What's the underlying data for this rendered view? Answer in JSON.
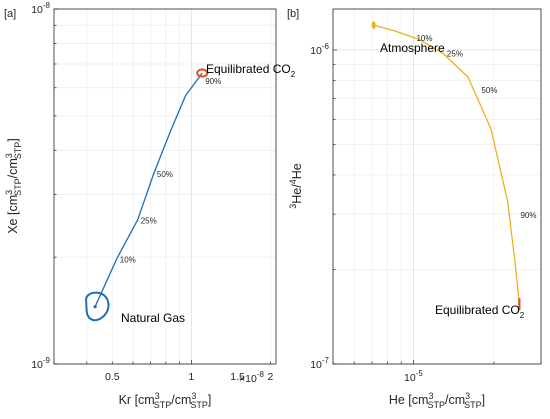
{
  "chart_data": [
    {
      "panel_label": "[a]",
      "type": "line",
      "xscale": "log",
      "yscale": "log",
      "xlim": [
        3e-09,
        2.1e-08
      ],
      "ylim": [
        1e-09,
        1e-08
      ],
      "xlabel_parts": [
        "Kr [cm",
        "3",
        "STP",
        "/cm",
        "3",
        "STP",
        "]"
      ],
      "ylabel_parts": [
        "Xe [cm",
        "3",
        "STP",
        "/cm",
        "3",
        "STP",
        "]"
      ],
      "x_ticks": [
        {
          "value": 5e-09,
          "label": "0.5"
        },
        {
          "value": 1e-08,
          "label": "1"
        },
        {
          "value": 1.5e-08,
          "label": "1.5"
        },
        {
          "value": 2e-08,
          "label": "2"
        }
      ],
      "x_multiplier": "×10",
      "x_multiplier_exp": "-8",
      "y_ticks": [
        {
          "value": 1e-09,
          "base": "10",
          "exp": "-9"
        },
        {
          "value": 1e-08,
          "base": "10",
          "exp": "-8"
        }
      ],
      "grid": true,
      "line_color": "#1f6eb3",
      "marker_color": "#d95319",
      "x": [
        4.3e-09,
        5.2e-09,
        6.25e-09,
        7.2e-09,
        8.3e-09,
        9.5e-09,
        1.1e-08
      ],
      "y": [
        1.45e-09,
        1.98e-09,
        2.55e-09,
        3.45e-09,
        4.5e-09,
        5.7e-09,
        6.6e-09
      ],
      "labeled_points": [
        {
          "label": "10%",
          "x": 5.2e-09,
          "y": 1.98e-09
        },
        {
          "label": "25%",
          "x": 6.25e-09,
          "y": 2.55e-09
        },
        {
          "label": "50%",
          "x": 7.2e-09,
          "y": 3.45e-09
        },
        {
          "label": "90%",
          "x": 1.1e-08,
          "y": 6.3e-09
        }
      ],
      "endmembers": [
        {
          "name": "Natural Gas",
          "x": 4.3e-09,
          "y": 1.45e-09,
          "color": "#1f6eb3"
        },
        {
          "name_parts": [
            "Equilibrated CO",
            "2"
          ],
          "x": 1.1e-08,
          "y": 6.6e-09,
          "color": "#d95319"
        }
      ]
    },
    {
      "panel_label": "[b]",
      "type": "line",
      "xscale": "log",
      "yscale": "log",
      "xlim": [
        5e-06,
        3e-05
      ],
      "ylim": [
        1e-07,
        1.35e-06
      ],
      "xlabel_parts": [
        "He [cm",
        "3",
        "STP",
        "/cm",
        "3",
        "STP",
        "]"
      ],
      "ylabel_parts": [
        "3",
        "He/",
        "4",
        "He"
      ],
      "x_ticks": [
        {
          "value": 1e-05,
          "base": "10",
          "exp": "-5"
        }
      ],
      "y_ticks": [
        {
          "value": 1e-07,
          "base": "10",
          "exp": "-7"
        },
        {
          "value": 1e-06,
          "base": "10",
          "exp": "-6"
        }
      ],
      "grid": true,
      "line_color": "#edb120",
      "marker_color": "#d95319",
      "x": [
        7.1e-06,
        8.5e-06,
        1.05e-05,
        1.3e-05,
        1.6e-05,
        1.95e-05,
        2.25e-05,
        2.4e-05,
        2.49e-05
      ],
      "y": [
        1.2e-06,
        1.15e-06,
        1.08e-06,
        9.7e-07,
        8.2e-07,
        5.6e-07,
        3.3e-07,
        2.1e-07,
        1.55e-07
      ],
      "labeled_points": [
        {
          "label": "10%",
          "x": 1e-05,
          "y": 1.1e-06
        },
        {
          "label": "25%",
          "x": 1.3e-05,
          "y": 9.8e-07
        },
        {
          "label": "50%",
          "x": 1.75e-05,
          "y": 7.5e-07
        },
        {
          "label": "90%",
          "x": 2.45e-05,
          "y": 3e-07
        }
      ],
      "endmembers": [
        {
          "name": "Atmosphere",
          "x": 7.1e-06,
          "y": 1.2e-06,
          "color": "#edb120"
        },
        {
          "name_parts": [
            "Equilibrated CO",
            "2"
          ],
          "x": 2.49e-05,
          "y": 1.55e-07,
          "color": "#d95319"
        }
      ]
    }
  ]
}
